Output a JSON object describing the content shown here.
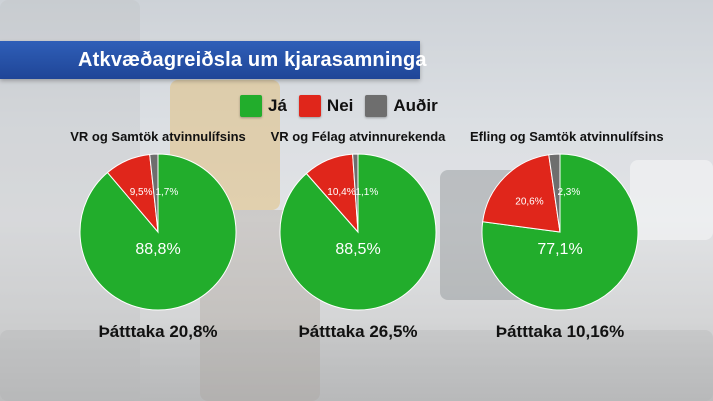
{
  "title": "Atkvæðagreiðsla um kjarasamninga",
  "legend": [
    {
      "label": "Já",
      "color": "#22ad2c"
    },
    {
      "label": "Nei",
      "color": "#e0261b"
    },
    {
      "label": "Auðir",
      "color": "#6e6e6e"
    }
  ],
  "chart_data": [
    {
      "type": "pie",
      "title": "VR og Samtök atvinnulífsins",
      "slices": [
        {
          "label": "Já",
          "value": 88.8,
          "text": "88,8%",
          "color": "#22ad2c"
        },
        {
          "label": "Nei",
          "value": 9.5,
          "text": "9,5%",
          "color": "#e0261b"
        },
        {
          "label": "Auðir",
          "value": 1.7,
          "text": "1,7%",
          "color": "#6e6e6e"
        }
      ],
      "footer": "Þátttaka 20,8%"
    },
    {
      "type": "pie",
      "title": "VR og Félag atvinnurekenda",
      "slices": [
        {
          "label": "Já",
          "value": 88.5,
          "text": "88,5%",
          "color": "#22ad2c"
        },
        {
          "label": "Nei",
          "value": 10.4,
          "text": "10,4%",
          "color": "#e0261b"
        },
        {
          "label": "Auðir",
          "value": 1.1,
          "text": "1,1%",
          "color": "#6e6e6e"
        }
      ],
      "footer": "Þátttaka 26,5%"
    },
    {
      "type": "pie",
      "title": "Efling og Samtök atvinnulífsins",
      "slices": [
        {
          "label": "Já",
          "value": 77.1,
          "text": "77,1%",
          "color": "#22ad2c"
        },
        {
          "label": "Nei",
          "value": 20.6,
          "text": "20,6%",
          "color": "#e0261b"
        },
        {
          "label": "Auðir",
          "value": 2.3,
          "text": "2,3%",
          "color": "#6e6e6e"
        }
      ],
      "footer": "Þátttaka 10,16%"
    }
  ]
}
